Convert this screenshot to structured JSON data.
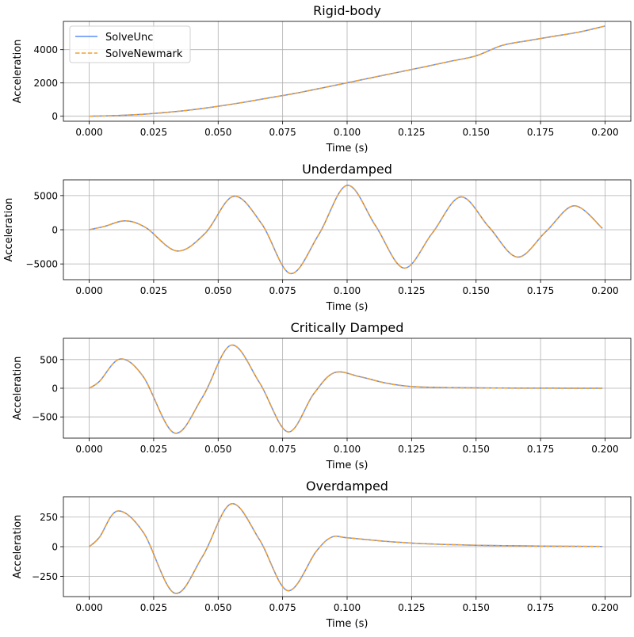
{
  "figure": {
    "background": "#ffffff",
    "grid": true
  },
  "legend": {
    "placement": "upper-left",
    "entries": [
      {
        "label": "SolveUnc",
        "color": "#5c8df6",
        "style": "solid"
      },
      {
        "label": "SolveNewmark",
        "color": "#f0a030",
        "style": "dashed"
      }
    ]
  },
  "chart_data": [
    {
      "type": "line",
      "title": "Rigid-body",
      "xlabel": "Time (s)",
      "ylabel": "Acceleration",
      "xlim": [
        -0.01,
        0.21
      ],
      "ylim": [
        -300,
        5700
      ],
      "xticks": [
        "0.000",
        "0.025",
        "0.050",
        "0.075",
        "0.100",
        "0.125",
        "0.150",
        "0.175",
        "0.200"
      ],
      "yticks": [
        "0",
        "2000",
        "4000"
      ],
      "ytick_values": [
        0,
        2000,
        4000
      ],
      "x": [
        0.0,
        0.01,
        0.02,
        0.03,
        0.04,
        0.05,
        0.06,
        0.07,
        0.08,
        0.09,
        0.1,
        0.11,
        0.12,
        0.13,
        0.14,
        0.15,
        0.16,
        0.17,
        0.18,
        0.19,
        0.2
      ],
      "series": [
        {
          "name": "SolveUnc",
          "values": [
            0,
            40,
            110,
            230,
            390,
            600,
            840,
            1110,
            1380,
            1690,
            2010,
            2330,
            2650,
            2970,
            3300,
            3630,
            4250,
            4540,
            4800,
            5060,
            5420
          ]
        },
        {
          "name": "SolveNewmark",
          "values": [
            0,
            40,
            110,
            230,
            390,
            600,
            840,
            1110,
            1380,
            1690,
            2010,
            2330,
            2650,
            2970,
            3300,
            3630,
            4250,
            4540,
            4800,
            5060,
            5420
          ]
        }
      ],
      "legend": true
    },
    {
      "type": "line",
      "title": "Underdamped",
      "xlabel": "Time (s)",
      "ylabel": "Acceleration",
      "xlim": [
        -0.01,
        0.21
      ],
      "ylim": [
        -7300,
        7300
      ],
      "xticks": [
        "0.000",
        "0.025",
        "0.050",
        "0.075",
        "0.100",
        "0.125",
        "0.150",
        "0.175",
        "0.200"
      ],
      "yticks": [
        "5000",
        "0",
        "−5000"
      ],
      "ytick_values": [
        5000,
        0,
        -5000
      ],
      "x": [
        0.0,
        0.006,
        0.014,
        0.022,
        0.034,
        0.045,
        0.056,
        0.067,
        0.078,
        0.089,
        0.1,
        0.111,
        0.122,
        0.133,
        0.144,
        0.155,
        0.166,
        0.177,
        0.188,
        0.199
      ],
      "series": [
        {
          "name": "SolveUnc",
          "values": [
            0,
            500,
            1300,
            300,
            -3100,
            -500,
            4900,
            800,
            -6400,
            -700,
            6500,
            600,
            -5600,
            -500,
            4800,
            400,
            -4000,
            -300,
            3500,
            200
          ]
        },
        {
          "name": "SolveNewmark",
          "values": [
            0,
            500,
            1300,
            300,
            -3100,
            -500,
            4900,
            800,
            -6400,
            -700,
            6500,
            600,
            -5600,
            -500,
            4800,
            400,
            -4000,
            -300,
            3500,
            200
          ]
        }
      ],
      "legend": false
    },
    {
      "type": "line",
      "title": "Critically Damped",
      "xlabel": "Time (s)",
      "ylabel": "Acceleration",
      "xlim": [
        -0.01,
        0.21
      ],
      "ylim": [
        -870,
        870
      ],
      "xticks": [
        "0.000",
        "0.025",
        "0.050",
        "0.075",
        "0.100",
        "0.125",
        "0.150",
        "0.175",
        "0.200"
      ],
      "yticks": [
        "500",
        "0",
        "−500"
      ],
      "ytick_values": [
        500,
        0,
        -500
      ],
      "x": [
        0.0,
        0.004,
        0.012,
        0.021,
        0.033,
        0.044,
        0.055,
        0.066,
        0.077,
        0.087,
        0.095,
        0.105,
        0.115,
        0.125,
        0.14,
        0.16,
        0.18,
        0.199
      ],
      "series": [
        {
          "name": "SolveUnc",
          "values": [
            0,
            120,
            510,
            200,
            -780,
            -150,
            750,
            100,
            -760,
            -100,
            270,
            200,
            90,
            30,
            10,
            3,
            1,
            0
          ]
        },
        {
          "name": "SolveNewmark",
          "values": [
            0,
            120,
            510,
            200,
            -780,
            -150,
            750,
            100,
            -760,
            -100,
            270,
            200,
            90,
            30,
            10,
            3,
            1,
            0
          ]
        }
      ],
      "legend": false
    },
    {
      "type": "line",
      "title": "Overdamped",
      "xlabel": "Time (s)",
      "ylabel": "Acceleration",
      "xlim": [
        -0.01,
        0.21
      ],
      "ylim": [
        -420,
        420
      ],
      "xticks": [
        "0.000",
        "0.025",
        "0.050",
        "0.075",
        "0.100",
        "0.125",
        "0.150",
        "0.175",
        "0.200"
      ],
      "yticks": [
        "250",
        "0",
        "−250"
      ],
      "ytick_values": [
        250,
        0,
        -250
      ],
      "x": [
        0.0,
        0.004,
        0.011,
        0.021,
        0.033,
        0.044,
        0.055,
        0.066,
        0.077,
        0.088,
        0.094,
        0.1,
        0.115,
        0.13,
        0.15,
        0.175,
        0.199
      ],
      "series": [
        {
          "name": "SolveUnc",
          "values": [
            0,
            80,
            300,
            120,
            -390,
            -80,
            360,
            60,
            -370,
            -40,
            80,
            75,
            45,
            25,
            12,
            5,
            2
          ]
        },
        {
          "name": "SolveNewmark",
          "values": [
            0,
            80,
            300,
            120,
            -390,
            -80,
            360,
            60,
            -370,
            -40,
            80,
            75,
            45,
            25,
            12,
            5,
            2
          ]
        }
      ],
      "legend": false
    }
  ]
}
